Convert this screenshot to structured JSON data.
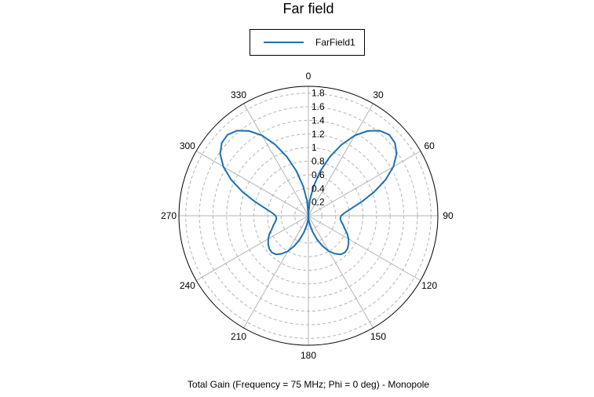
{
  "title": "Far field",
  "footer": "Total Gain (Frequency = 75 MHz; Phi = 0 deg) - Monopole",
  "colors": {
    "series": "#1f6fb2",
    "grid": "#b4b4b4"
  },
  "chart_data": {
    "type": "polar-line",
    "title": "Far field",
    "subtitle": "Total Gain (Frequency = 75 MHz; Phi = 0 deg) - Monopole",
    "theta_unit": "deg",
    "theta_direction": "clockwise",
    "theta_zero": "top",
    "theta_ticks": [
      0,
      30,
      60,
      90,
      120,
      150,
      180,
      210,
      240,
      270,
      300,
      330
    ],
    "r_ticks": [
      0.2,
      0.4,
      0.6,
      0.8,
      1,
      1.2,
      1.4,
      1.6,
      1.8
    ],
    "r_range": [
      0,
      1.9
    ],
    "grid": true,
    "legend_position": "top-center",
    "series": [
      {
        "name": "FarField1",
        "theta": [
          0,
          5,
          10,
          15,
          20,
          25,
          30,
          35,
          40,
          45,
          50,
          55,
          60,
          65,
          70,
          75,
          80,
          85,
          90,
          95,
          100,
          105,
          110,
          115,
          120,
          125,
          130,
          135,
          140,
          145,
          150,
          155,
          160,
          165,
          170,
          175,
          180
        ],
        "r": [
          0.0,
          0.22,
          0.44,
          0.68,
          0.92,
          1.15,
          1.36,
          1.52,
          1.63,
          1.68,
          1.66,
          1.58,
          1.44,
          1.25,
          1.03,
          0.82,
          0.65,
          0.54,
          0.48,
          0.47,
          0.49,
          0.53,
          0.57,
          0.63,
          0.68,
          0.72,
          0.75,
          0.76,
          0.74,
          0.68,
          0.6,
          0.49,
          0.37,
          0.25,
          0.14,
          0.06,
          0.0
        ]
      }
    ]
  }
}
